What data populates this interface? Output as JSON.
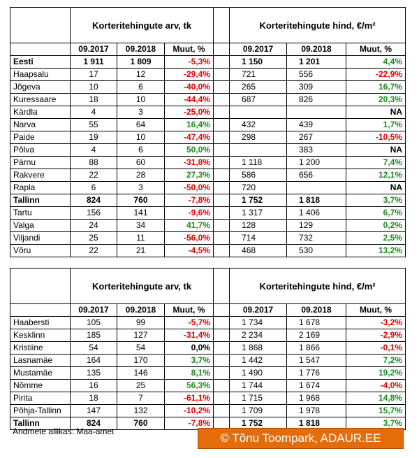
{
  "tables": [
    {
      "group_headers": [
        "Korteritehingute arv, tk",
        "Korteritehingute hind, €/m²"
      ],
      "sub_headers": [
        "09.2017",
        "09.2018",
        "Muut, %",
        "09.2017",
        "09.2018",
        "Muut, %"
      ],
      "bold_rows": [
        0,
        11
      ],
      "rows": [
        [
          "Eesti",
          "1 911",
          "1 809",
          "-5,3%",
          "1 150",
          "1 201",
          "4,4%"
        ],
        [
          "Haapsalu",
          "17",
          "12",
          "-29,4%",
          "721",
          "556",
          "-22,9%"
        ],
        [
          "Jõgeva",
          "10",
          "6",
          "-40,0%",
          "265",
          "309",
          "16,7%"
        ],
        [
          "Kuressaare",
          "18",
          "10",
          "-44,4%",
          "687",
          "826",
          "20,3%"
        ],
        [
          "Kärdla",
          "4",
          "3",
          "-25,0%",
          null,
          null,
          "NA"
        ],
        [
          "Narva",
          "55",
          "64",
          "16,4%",
          "432",
          "439",
          "1,7%"
        ],
        [
          "Paide",
          "19",
          "10",
          "-47,4%",
          "298",
          "267",
          "-10,5%"
        ],
        [
          "Põlva",
          "4",
          "6",
          "50,0%",
          null,
          "383",
          "NA"
        ],
        [
          "Pärnu",
          "88",
          "60",
          "-31,8%",
          "1 118",
          "1 200",
          "7,4%"
        ],
        [
          "Rakvere",
          "22",
          "28",
          "27,3%",
          "586",
          "656",
          "12,1%"
        ],
        [
          "Rapla",
          "6",
          "3",
          "-50,0%",
          "720",
          null,
          "NA"
        ],
        [
          "Tallinn",
          "824",
          "760",
          "-7,8%",
          "1 752",
          "1 818",
          "3,7%"
        ],
        [
          "Tartu",
          "156",
          "141",
          "-9,6%",
          "1 317",
          "1 406",
          "6,7%"
        ],
        [
          "Valga",
          "24",
          "34",
          "41,7%",
          "128",
          "129",
          "0,2%"
        ],
        [
          "Viljandi",
          "25",
          "11",
          "-56,0%",
          "714",
          "732",
          "2,5%"
        ],
        [
          "Võru",
          "22",
          "21",
          "-4,5%",
          "468",
          "530",
          "13,2%"
        ]
      ]
    },
    {
      "group_headers": [
        "Korteritehingute arv, tk",
        "Korteritehingute hind, €/m²"
      ],
      "sub_headers": [
        "09.2017",
        "09.2018",
        "Muut, %",
        "09.2017",
        "09.2018",
        "Muut, %"
      ],
      "bold_rows": [
        8
      ],
      "rows": [
        [
          "Haabersti",
          "105",
          "99",
          "-5,7%",
          "1 734",
          "1 678",
          "-3,2%"
        ],
        [
          "Kesklinn",
          "185",
          "127",
          "-31,4%",
          "2 234",
          "2 169",
          "-2,9%"
        ],
        [
          "Kristiine",
          "54",
          "54",
          "0,0%",
          "1 868",
          "1 866",
          "-0,1%"
        ],
        [
          "Lasnamäe",
          "164",
          "170",
          "3,7%",
          "1 442",
          "1 547",
          "7,2%"
        ],
        [
          "Mustamäe",
          "135",
          "146",
          "8,1%",
          "1 490",
          "1 776",
          "19,2%"
        ],
        [
          "Nõmme",
          "16",
          "25",
          "56,3%",
          "1 744",
          "1 674",
          "-4,0%"
        ],
        [
          "Pirita",
          "18",
          "7",
          "-61,1%",
          "1 715",
          "1 968",
          "14,8%"
        ],
        [
          "Põhja-Tallinn",
          "147",
          "132",
          "-10,2%",
          "1 709",
          "1 978",
          "15,7%"
        ],
        [
          "Tallinn",
          "824",
          "760",
          "-7,8%",
          "1 752",
          "1 818",
          "3,7%"
        ]
      ]
    }
  ],
  "source": "Andmete allikas: Maa-amet",
  "copyright": "© Tõnu Toompark, ADAUR.EE"
}
